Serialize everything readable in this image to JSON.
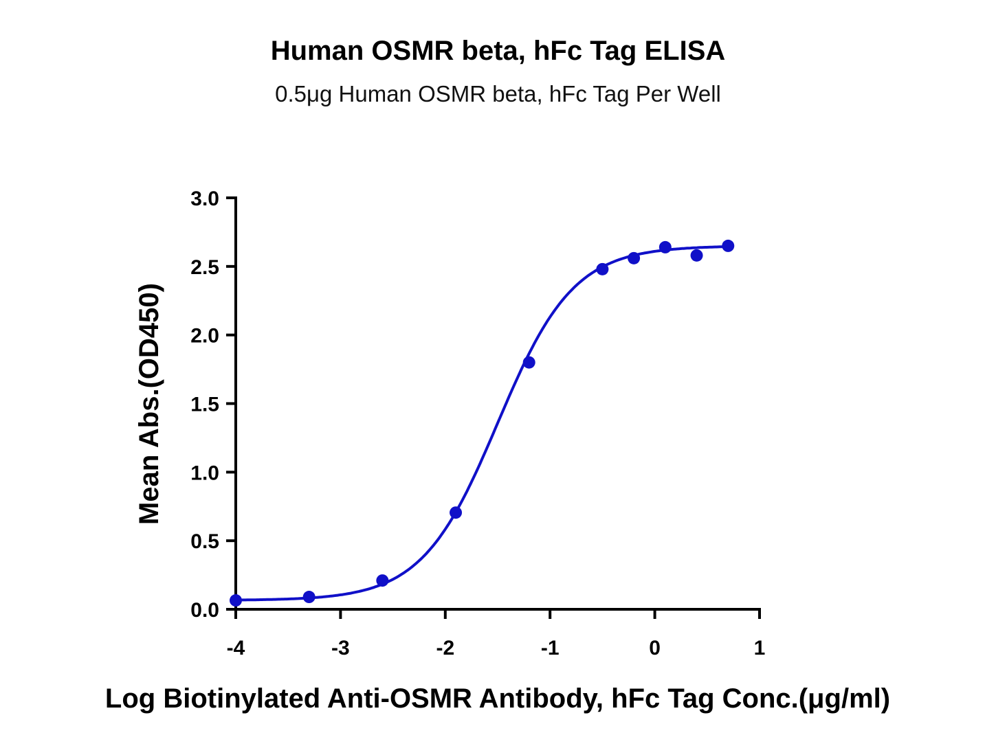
{
  "chart_data": {
    "type": "scatter",
    "title": "Human OSMR beta, hFc Tag ELISA",
    "subtitle": "0.5μg Human OSMR beta, hFc Tag Per Well",
    "xlabel": "Log Biotinylated Anti-OSMR Antibody, hFc Tag Conc.(μg/ml)",
    "ylabel": "Mean Abs.(OD450)",
    "xlim": [
      -4,
      1
    ],
    "ylim": [
      0,
      3.0
    ],
    "xticks": [
      "-4",
      "-3",
      "-2",
      "-1",
      "0",
      "1"
    ],
    "yticks": [
      "0.0",
      "0.5",
      "1.0",
      "1.5",
      "2.0",
      "2.5",
      "3.0"
    ],
    "grid": false,
    "color": "#1010c8",
    "x": [
      -4.0,
      -3.3,
      -2.6,
      -1.9,
      -1.2,
      -0.5,
      -0.2,
      0.1,
      0.4,
      0.7
    ],
    "y": [
      0.065,
      0.09,
      0.21,
      0.705,
      1.8,
      2.48,
      2.56,
      2.64,
      2.58,
      2.65
    ],
    "fit": {
      "model": "4PL",
      "bottom": 0.065,
      "top": 2.65,
      "logEC50": -1.5,
      "hill": 1.2
    }
  }
}
